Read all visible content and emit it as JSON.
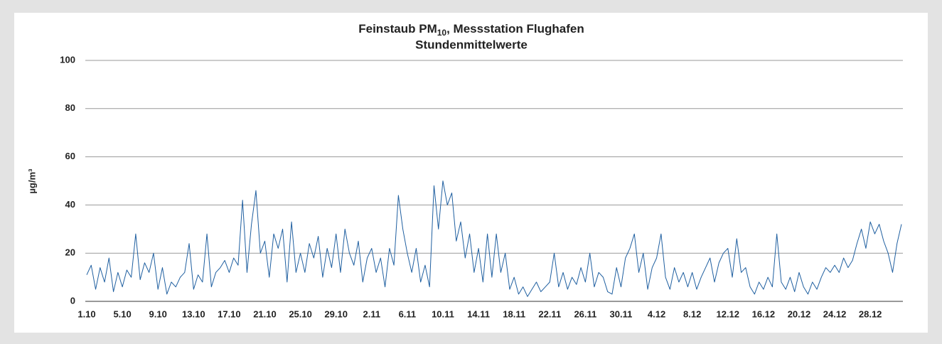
{
  "chart_data": {
    "type": "line",
    "title": {
      "text": "Feinstaub PM",
      "subscript": "10",
      "rest": ", Messstation Flughafen"
    },
    "subtitle": "Stundenmittelwerte",
    "ylabel": "µg/m³",
    "color": "#1f5fa0",
    "grid": true,
    "ylim": [
      0,
      100
    ],
    "yticks": [
      0,
      20,
      40,
      60,
      80,
      100
    ],
    "categories": [
      "1.10",
      null,
      null,
      null,
      null,
      null,
      null,
      null,
      "5.10",
      null,
      null,
      null,
      null,
      null,
      null,
      null,
      "9.10",
      null,
      null,
      null,
      null,
      null,
      null,
      null,
      "13.10",
      null,
      null,
      null,
      null,
      null,
      null,
      null,
      "17.10",
      null,
      null,
      null,
      null,
      null,
      null,
      null,
      "21.10",
      null,
      null,
      null,
      null,
      null,
      null,
      null,
      "25.10",
      null,
      null,
      null,
      null,
      null,
      null,
      null,
      "29.10",
      null,
      null,
      null,
      null,
      null,
      null,
      null,
      "2.11",
      null,
      null,
      null,
      null,
      null,
      null,
      null,
      "6.11",
      null,
      null,
      null,
      null,
      null,
      null,
      null,
      "10.11",
      null,
      null,
      null,
      null,
      null,
      null,
      null,
      "14.11",
      null,
      null,
      null,
      null,
      null,
      null,
      null,
      "18.11",
      null,
      null,
      null,
      null,
      null,
      null,
      null,
      "22.11",
      null,
      null,
      null,
      null,
      null,
      null,
      null,
      "26.11",
      null,
      null,
      null,
      null,
      null,
      null,
      null,
      "30.11",
      null,
      null,
      null,
      null,
      null,
      null,
      null,
      "4.12",
      null,
      null,
      null,
      null,
      null,
      null,
      null,
      "8.12",
      null,
      null,
      null,
      null,
      null,
      null,
      null,
      "12.12",
      null,
      null,
      null,
      null,
      null,
      null,
      null,
      "16.12",
      null,
      null,
      null,
      null,
      null,
      null,
      null,
      "20.12",
      null,
      null,
      null,
      null,
      null,
      null,
      null,
      "24.12",
      null,
      null,
      null,
      null,
      null,
      null,
      null,
      "28.12",
      null,
      null,
      null,
      null,
      null,
      null,
      null
    ],
    "values": [
      11,
      15,
      5,
      14,
      8,
      18,
      4,
      12,
      6,
      13,
      10,
      28,
      9,
      16,
      12,
      20,
      5,
      14,
      3,
      8,
      6,
      10,
      12,
      24,
      5,
      11,
      8,
      28,
      6,
      12,
      14,
      17,
      12,
      18,
      15,
      42,
      12,
      32,
      46,
      20,
      25,
      10,
      28,
      22,
      30,
      8,
      33,
      12,
      20,
      12,
      24,
      18,
      27,
      10,
      22,
      14,
      28,
      12,
      30,
      20,
      15,
      25,
      8,
      18,
      22,
      12,
      18,
      6,
      22,
      15,
      44,
      30,
      20,
      12,
      22,
      8,
      15,
      6,
      48,
      30,
      50,
      40,
      45,
      25,
      33,
      18,
      28,
      12,
      22,
      8,
      28,
      10,
      28,
      12,
      20,
      5,
      10,
      3,
      6,
      2,
      5,
      8,
      4,
      6,
      8,
      20,
      6,
      12,
      5,
      10,
      7,
      14,
      8,
      20,
      6,
      12,
      10,
      4,
      3,
      14,
      6,
      18,
      22,
      28,
      12,
      20,
      5,
      14,
      18,
      28,
      10,
      5,
      14,
      8,
      12,
      6,
      12,
      5,
      10,
      14,
      18,
      8,
      16,
      20,
      22,
      10,
      26,
      12,
      14,
      6,
      3,
      8,
      5,
      10,
      6,
      28,
      8,
      5,
      10,
      4,
      12,
      6,
      3,
      8,
      5,
      10,
      14,
      12,
      15,
      12,
      18,
      14,
      17,
      24,
      30,
      22,
      33,
      28,
      32,
      25,
      20,
      12,
      24,
      32
    ]
  }
}
